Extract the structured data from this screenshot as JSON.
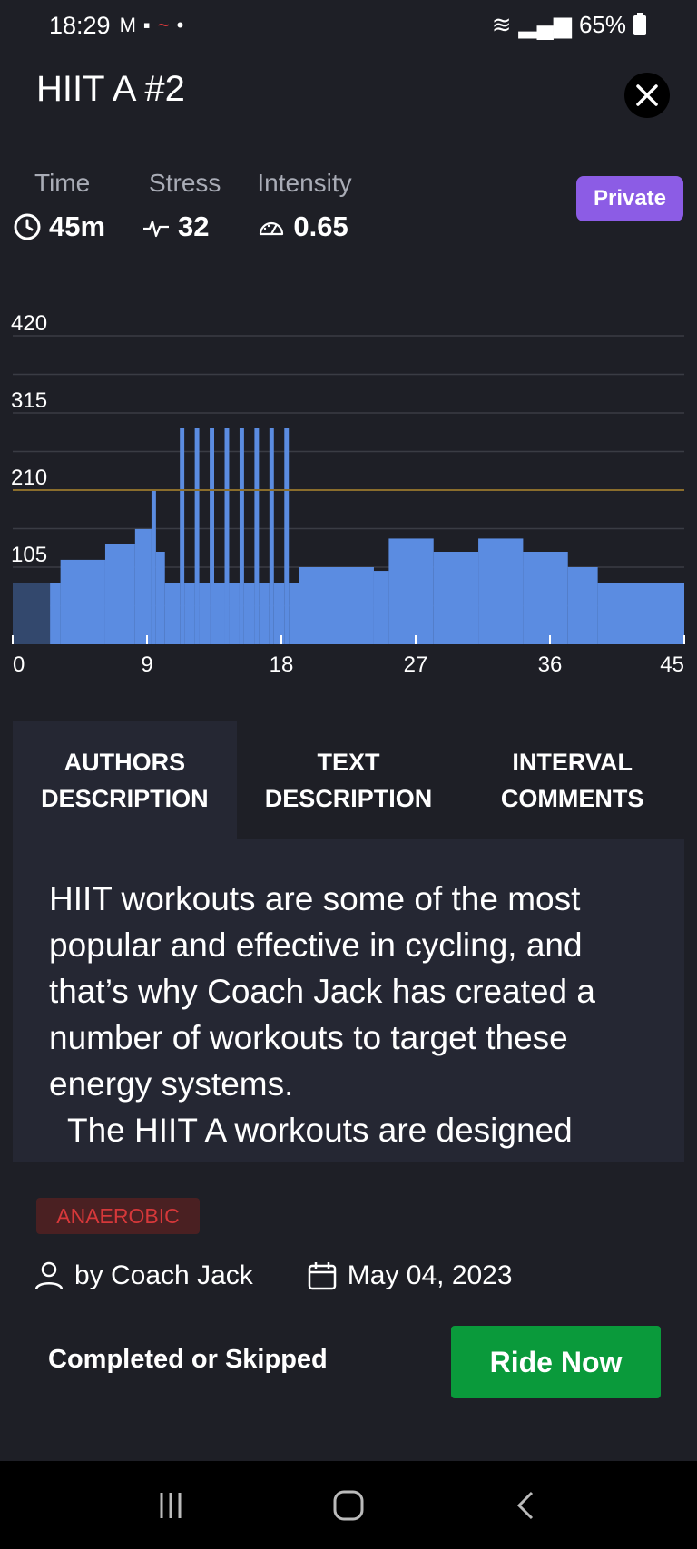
{
  "status_bar": {
    "time": "18:29",
    "battery": "65%"
  },
  "header": {
    "title": "HIIT A #2"
  },
  "stats": {
    "time": {
      "label": "Time",
      "value": "45m"
    },
    "stress": {
      "label": "Stress",
      "value": "32"
    },
    "intensity": {
      "label": "Intensity",
      "value": "0.65"
    }
  },
  "badge": "Private",
  "chart_data": {
    "type": "bar",
    "y_ticks": [
      105,
      210,
      315,
      420
    ],
    "x_ticks": [
      "0",
      "9",
      "18",
      "27",
      "36",
      "45"
    ],
    "ftp_line": 210,
    "ylim": [
      0,
      420
    ],
    "xlim": [
      0,
      45
    ],
    "segments": [
      {
        "start": 0,
        "end": 2.5,
        "value": 84
      },
      {
        "start": 2.5,
        "end": 3.2,
        "value": 84
      },
      {
        "start": 3.2,
        "end": 6.2,
        "value": 115
      },
      {
        "start": 6.2,
        "end": 8.2,
        "value": 136
      },
      {
        "start": 8.2,
        "end": 9.3,
        "value": 157
      },
      {
        "start": 9.3,
        "end": 9.6,
        "value": 210
      },
      {
        "start": 9.6,
        "end": 10.2,
        "value": 126
      },
      {
        "start": 10.2,
        "end": 11.2,
        "value": 84
      },
      {
        "start": 11.2,
        "end": 11.5,
        "value": 294
      },
      {
        "start": 11.5,
        "end": 12.2,
        "value": 84
      },
      {
        "start": 12.2,
        "end": 12.5,
        "value": 294
      },
      {
        "start": 12.5,
        "end": 13.2,
        "value": 84
      },
      {
        "start": 13.2,
        "end": 13.5,
        "value": 294
      },
      {
        "start": 13.5,
        "end": 14.2,
        "value": 84
      },
      {
        "start": 14.2,
        "end": 14.5,
        "value": 294
      },
      {
        "start": 14.5,
        "end": 15.2,
        "value": 84
      },
      {
        "start": 15.2,
        "end": 15.5,
        "value": 294
      },
      {
        "start": 15.5,
        "end": 16.2,
        "value": 84
      },
      {
        "start": 16.2,
        "end": 16.5,
        "value": 294
      },
      {
        "start": 16.5,
        "end": 17.2,
        "value": 84
      },
      {
        "start": 17.2,
        "end": 17.5,
        "value": 294
      },
      {
        "start": 17.5,
        "end": 18.2,
        "value": 84
      },
      {
        "start": 18.2,
        "end": 18.5,
        "value": 294
      },
      {
        "start": 18.5,
        "end": 19.2,
        "value": 84
      },
      {
        "start": 19.2,
        "end": 24.2,
        "value": 105
      },
      {
        "start": 24.2,
        "end": 25.2,
        "value": 100
      },
      {
        "start": 25.2,
        "end": 28.2,
        "value": 144
      },
      {
        "start": 28.2,
        "end": 31.2,
        "value": 126
      },
      {
        "start": 31.2,
        "end": 34.2,
        "value": 144
      },
      {
        "start": 34.2,
        "end": 37.2,
        "value": 126
      },
      {
        "start": 37.2,
        "end": 39.2,
        "value": 105
      },
      {
        "start": 39.2,
        "end": 45,
        "value": 84
      }
    ]
  },
  "tabs": [
    {
      "label": "AUTHORS DESCRIPTION"
    },
    {
      "label": "TEXT DESCRIPTION"
    },
    {
      "label": "INTERVAL COMMENTS"
    }
  ],
  "description": {
    "para1": "HIIT workouts are some of the most popular and effective in cycling, and that’s why Coach Jack has created a number of workouts to target these energy systems.",
    "para2": "The HIIT A workouts are designed"
  },
  "tag": "ANAEROBIC",
  "meta": {
    "author": "by Coach Jack",
    "date": "May 04, 2023"
  },
  "footer": {
    "completed_label": "Completed or Skipped",
    "ride_now_label": "Ride Now"
  },
  "colors": {
    "bar": "#5b8ce1",
    "ftp_line": "#8a6d2c",
    "grid": "#3a3c44",
    "accent_private": "#8c5ce5",
    "ride_button": "#0a9a3b",
    "tag_text": "#d6383a"
  }
}
